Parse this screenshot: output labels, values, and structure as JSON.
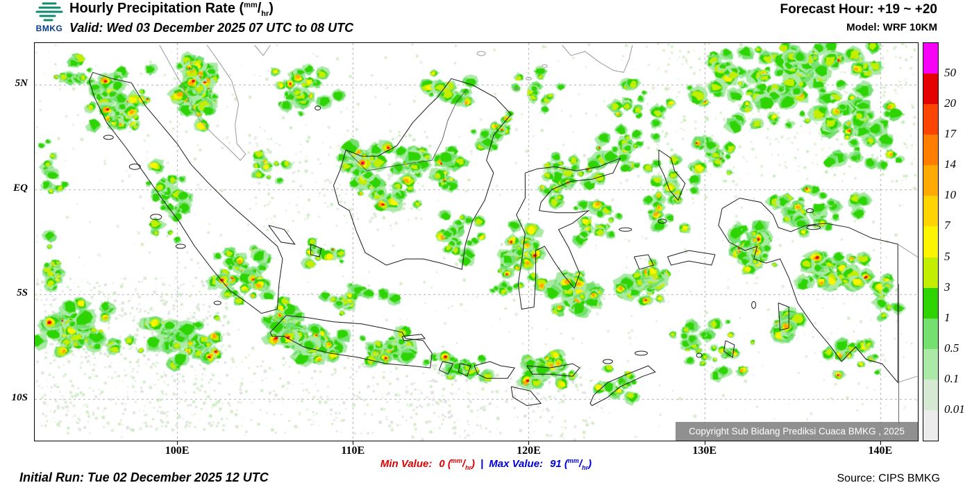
{
  "units": {
    "numerator": "mm",
    "denominator": "hr"
  },
  "header": {
    "logo_text": "BMKG",
    "title": "Hourly Precipitation Rate",
    "valid": "Valid: Wed 03 December 2025 07 UTC to 08 UTC",
    "forecast_hour": "Forecast Hour: +19 ~ +20",
    "model": "Model: WRF 10KM"
  },
  "map": {
    "x_ticks": [
      "100E",
      "110E",
      "120E",
      "130E",
      "140E"
    ],
    "y_ticks": [
      "5N",
      "EQ",
      "5S",
      "10S"
    ],
    "copyright": "Copyright Sub Bidang Prediksi Cuaca BMKG , 2025"
  },
  "legend": {
    "labels": [
      "50",
      "20",
      "17",
      "14",
      "10",
      "7",
      "5",
      "3",
      "1",
      "0.5",
      "0.1",
      "0.01"
    ],
    "colors": [
      "#f600f6",
      "#e40000",
      "#fb4400",
      "#ff7e00",
      "#ffaa00",
      "#ffd400",
      "#fcf400",
      "#c4ee00",
      "#2ed400",
      "#74e070",
      "#aaeaa6",
      "#d6e9d2",
      "#ececec"
    ]
  },
  "footer": {
    "min_label": "Min Value:",
    "min_value": "0",
    "separator": "|",
    "max_label": "Max Value:",
    "max_value": "91",
    "initial_run": "Initial Run: Tue 02 December 2025 12 UTC",
    "source": "Source: CIPS BMKG"
  },
  "chart_data": {
    "type": "heatmap",
    "title": "Hourly Precipitation Rate (mm/hr)",
    "valid": "Wed 03 December 2025 07 UTC to 08 UTC",
    "forecast_hour": "+19 ~ +20",
    "model": "WRF 10KM",
    "initial_run": "Tue 02 December 2025 12 UTC",
    "source": "CIPS BMKG",
    "x_axis": {
      "ticks": [
        "100E",
        "110E",
        "120E",
        "130E",
        "140E"
      ],
      "approx_range_lon": [
        92,
        142
      ]
    },
    "y_axis": {
      "ticks": [
        "5N",
        "EQ",
        "5S",
        "10S"
      ],
      "approx_range_lat": [
        -12,
        7
      ]
    },
    "color_levels_mm_per_hr": [
      0.01,
      0.1,
      0.5,
      1,
      3,
      5,
      7,
      10,
      14,
      17,
      20,
      50
    ],
    "min_value_mm_per_hr": 0,
    "max_value_mm_per_hr": 91
  }
}
